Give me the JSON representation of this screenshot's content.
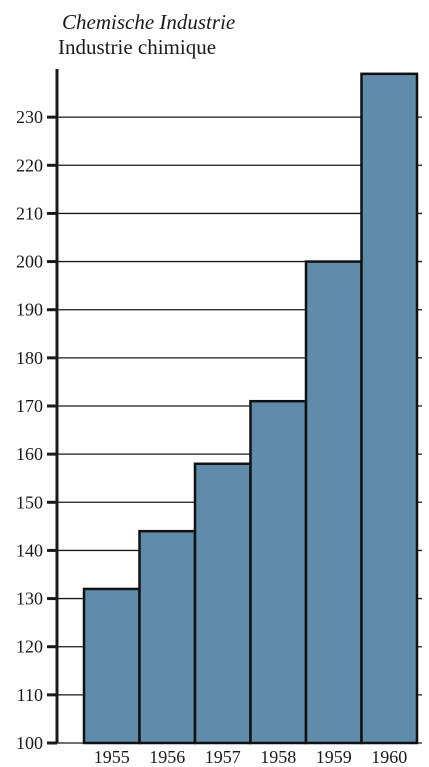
{
  "chart_data": {
    "type": "bar",
    "title": "Chemische Industrie",
    "subtitle": "Industrie chimique",
    "categories": [
      "1955",
      "1956",
      "1957",
      "1958",
      "1959",
      "1960"
    ],
    "values": [
      132,
      144,
      158,
      171,
      200,
      239
    ],
    "yticks": [
      100,
      110,
      120,
      130,
      140,
      150,
      160,
      170,
      180,
      190,
      200,
      210,
      220,
      230
    ],
    "ylim": [
      100,
      240
    ],
    "grid": true,
    "bar_color": "#5f8cab"
  }
}
